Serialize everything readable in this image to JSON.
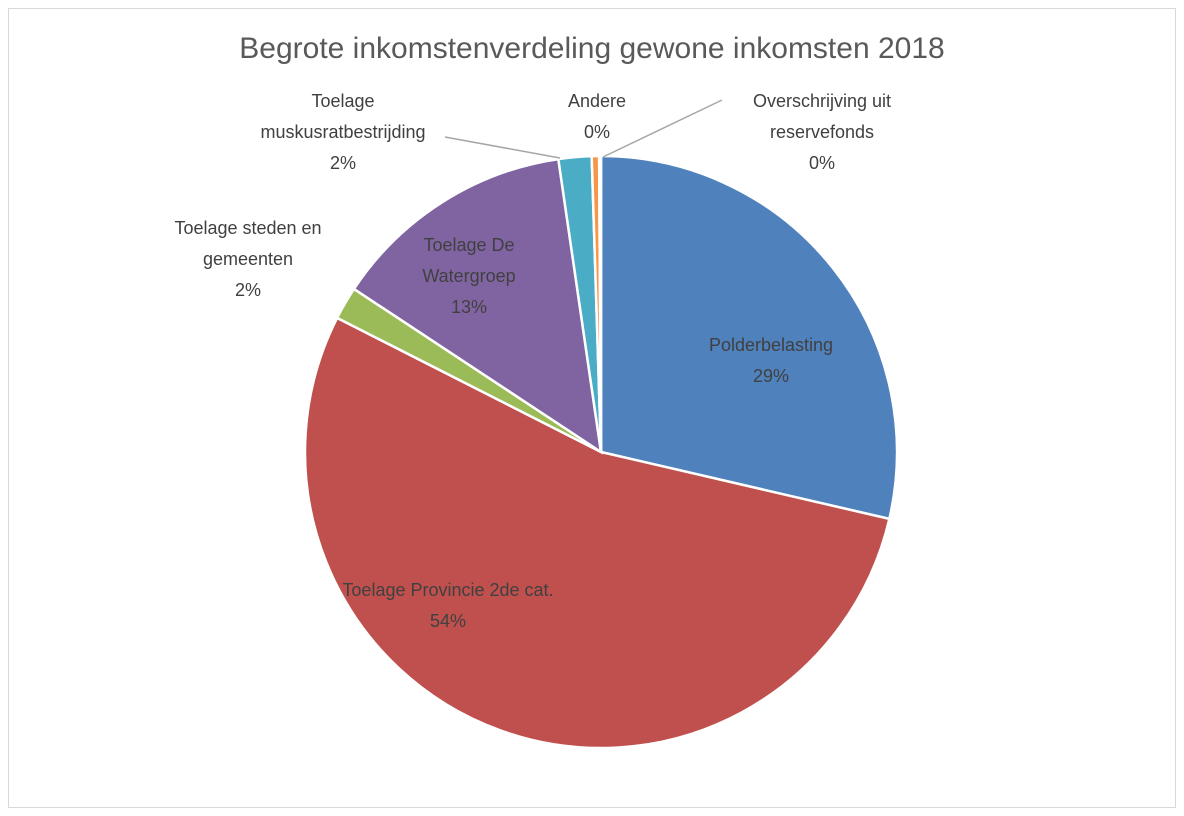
{
  "chart_data": {
    "type": "pie",
    "title": "Begrote inkomstenverdeling gewone inkomsten 2018",
    "categories": [
      "Polderbelasting",
      "Toelage Provincie 2de cat.",
      "Toelage steden en gemeenten",
      "Toelage De Watergroep",
      "Toelage muskusratbestrijding",
      "Andere",
      "Overschrijving uit reservefonds"
    ],
    "values": [
      28.6,
      53.8,
      1.8,
      13.4,
      1.8,
      0.4,
      0.1
    ],
    "value_labels": [
      "29%",
      "54%",
      "2%",
      "13%",
      "2%",
      "0%",
      "0%"
    ],
    "colors": [
      "#4f81bd",
      "#c0504d",
      "#9bbb59",
      "#8064a2",
      "#4bacc6",
      "#f79646",
      "#2c4d75"
    ]
  }
}
